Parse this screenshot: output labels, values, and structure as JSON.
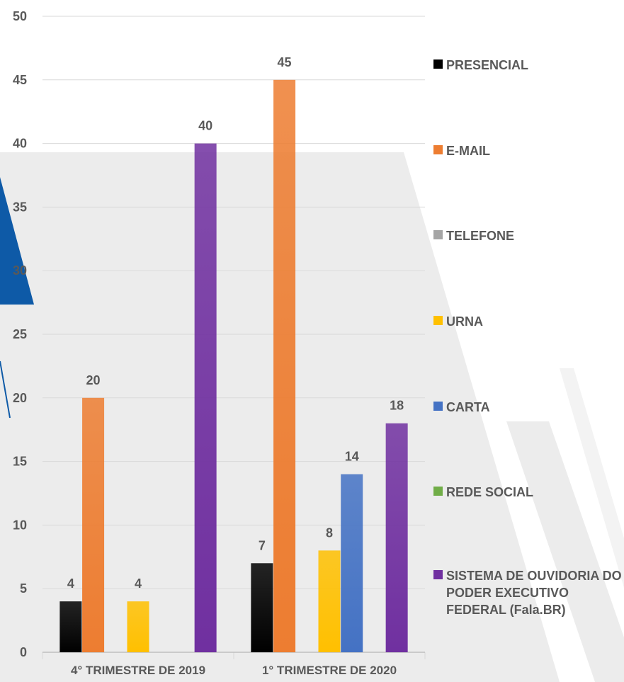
{
  "chart_data": {
    "type": "bar",
    "categories": [
      "4° TRIMESTRE DE 2019",
      "1° TRIMESTRE DE 2020"
    ],
    "series": [
      {
        "name": "PRESENCIAL",
        "color": "#000000",
        "values": [
          4,
          7
        ]
      },
      {
        "name": "E-MAIL",
        "color": "#ED7D31",
        "values": [
          20,
          45
        ]
      },
      {
        "name": "TELEFONE",
        "color": "#A5A5A5",
        "values": [
          0,
          0
        ]
      },
      {
        "name": "URNA",
        "color": "#FFC000",
        "values": [
          4,
          8
        ]
      },
      {
        "name": "CARTA",
        "color": "#4472C4",
        "values": [
          0,
          14
        ]
      },
      {
        "name": "REDE SOCIAL",
        "color": "#70AD47",
        "values": [
          0,
          0
        ]
      },
      {
        "name": "SISTEMA DE OUVIDORIA DO PODER EXECUTIVO FEDERAL (Fala.BR)",
        "color": "#7030A0",
        "values": [
          40,
          18
        ]
      }
    ],
    "ylim": [
      0,
      50
    ],
    "yticks": [
      0,
      5,
      10,
      15,
      20,
      25,
      30,
      35,
      40,
      45,
      50
    ],
    "grid": true,
    "legend_position": "right"
  },
  "colors": {
    "background_shape": "#ECECEC",
    "accent_blue": "#0E5AA7",
    "text": "#595959"
  }
}
